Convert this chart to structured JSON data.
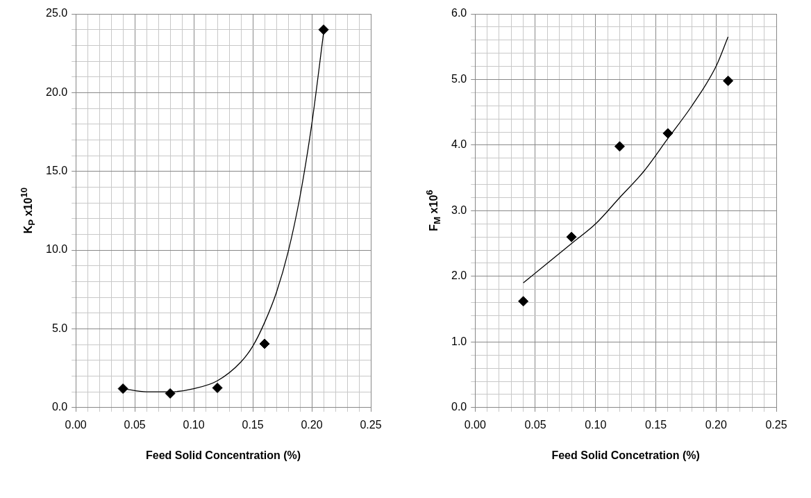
{
  "chart_data": [
    {
      "type": "scatter",
      "xlabel": "Feed Solid Concentration (%)",
      "ylabel": "K$_{P}$ x10$^{10}$",
      "grid": true,
      "xlim": [
        0,
        0.25
      ],
      "ylim": [
        0,
        25
      ],
      "xticks": [
        {
          "value": 0,
          "label": "0.00"
        },
        {
          "value": 0.01,
          "label": null
        },
        {
          "value": 0.02,
          "label": null
        },
        {
          "value": 0.03,
          "label": null
        },
        {
          "value": 0.04,
          "label": null
        },
        {
          "value": 0.05,
          "label": "0.05"
        },
        {
          "value": 0.06,
          "label": null
        },
        {
          "value": 0.07,
          "label": null
        },
        {
          "value": 0.08,
          "label": null
        },
        {
          "value": 0.09,
          "label": null
        },
        {
          "value": 0.1,
          "label": "0.10"
        },
        {
          "value": 0.11,
          "label": null
        },
        {
          "value": 0.12,
          "label": null
        },
        {
          "value": 0.13,
          "label": null
        },
        {
          "value": 0.14,
          "label": null
        },
        {
          "value": 0.15,
          "label": "0.15"
        },
        {
          "value": 0.16,
          "label": null
        },
        {
          "value": 0.17,
          "label": null
        },
        {
          "value": 0.18,
          "label": null
        },
        {
          "value": 0.19,
          "label": null
        },
        {
          "value": 0.2,
          "label": "0.20"
        },
        {
          "value": 0.21,
          "label": null
        },
        {
          "value": 0.22,
          "label": null
        },
        {
          "value": 0.23,
          "label": null
        },
        {
          "value": 0.24,
          "label": null
        },
        {
          "value": 0.25,
          "label": "0.25"
        }
      ],
      "yticks": [
        {
          "value": 0,
          "label": "0.0"
        },
        {
          "value": 1,
          "label": null
        },
        {
          "value": 2,
          "label": null
        },
        {
          "value": 3,
          "label": null
        },
        {
          "value": 4,
          "label": null
        },
        {
          "value": 5,
          "label": "5.0"
        },
        {
          "value": 6,
          "label": null
        },
        {
          "value": 7,
          "label": null
        },
        {
          "value": 8,
          "label": null
        },
        {
          "value": 9,
          "label": null
        },
        {
          "value": 10,
          "label": "10.0"
        },
        {
          "value": 11,
          "label": null
        },
        {
          "value": 12,
          "label": null
        },
        {
          "value": 13,
          "label": null
        },
        {
          "value": 14,
          "label": null
        },
        {
          "value": 15,
          "label": "15.0"
        },
        {
          "value": 16,
          "label": null
        },
        {
          "value": 17,
          "label": null
        },
        {
          "value": 18,
          "label": null
        },
        {
          "value": 19,
          "label": null
        },
        {
          "value": 20,
          "label": "20.0"
        },
        {
          "value": 21,
          "label": null
        },
        {
          "value": 22,
          "label": null
        },
        {
          "value": 23,
          "label": null
        },
        {
          "value": 24,
          "label": null
        },
        {
          "value": 25,
          "label": "25.0"
        }
      ],
      "series": [
        {
          "type": "scatter",
          "color": "#000000",
          "marker": "diamond",
          "x": [
            0.04,
            0.08,
            0.12,
            0.16,
            0.21
          ],
          "values": [
            1.2,
            0.9,
            1.25,
            4.05,
            24.0
          ]
        },
        {
          "type": "line",
          "color": "#000000",
          "marker": "none",
          "x": [
            0.04,
            0.06,
            0.08,
            0.1,
            0.12,
            0.14,
            0.15,
            0.16,
            0.17,
            0.18,
            0.19,
            0.2,
            0.21
          ],
          "values": [
            1.2,
            1.0,
            1.0,
            1.2,
            1.7,
            2.9,
            3.9,
            5.4,
            7.3,
            9.9,
            13.4,
            18.0,
            23.8
          ]
        }
      ]
    },
    {
      "type": "scatter",
      "xlabel": "Feed Solid Concetration (%)",
      "ylabel": "F$_{M}$ x10$^{6}$",
      "grid": true,
      "xlim": [
        0,
        0.25
      ],
      "ylim": [
        0,
        6
      ],
      "xticks": [
        {
          "value": 0,
          "label": "0.00"
        },
        {
          "value": 0.01,
          "label": null
        },
        {
          "value": 0.02,
          "label": null
        },
        {
          "value": 0.03,
          "label": null
        },
        {
          "value": 0.04,
          "label": null
        },
        {
          "value": 0.05,
          "label": "0.05"
        },
        {
          "value": 0.06,
          "label": null
        },
        {
          "value": 0.07,
          "label": null
        },
        {
          "value": 0.08,
          "label": null
        },
        {
          "value": 0.09,
          "label": null
        },
        {
          "value": 0.1,
          "label": "0.10"
        },
        {
          "value": 0.11,
          "label": null
        },
        {
          "value": 0.12,
          "label": null
        },
        {
          "value": 0.13,
          "label": null
        },
        {
          "value": 0.14,
          "label": null
        },
        {
          "value": 0.15,
          "label": "0.15"
        },
        {
          "value": 0.16,
          "label": null
        },
        {
          "value": 0.17,
          "label": null
        },
        {
          "value": 0.18,
          "label": null
        },
        {
          "value": 0.19,
          "label": null
        },
        {
          "value": 0.2,
          "label": "0.20"
        },
        {
          "value": 0.21,
          "label": null
        },
        {
          "value": 0.22,
          "label": null
        },
        {
          "value": 0.23,
          "label": null
        },
        {
          "value": 0.24,
          "label": null
        },
        {
          "value": 0.25,
          "label": "0.25"
        }
      ],
      "yticks": [
        {
          "value": 0,
          "label": "0.0"
        },
        {
          "value": 0.2,
          "label": null
        },
        {
          "value": 0.4,
          "label": null
        },
        {
          "value": 0.6,
          "label": null
        },
        {
          "value": 0.8,
          "label": null
        },
        {
          "value": 1,
          "label": "1.0"
        },
        {
          "value": 1.2,
          "label": null
        },
        {
          "value": 1.4,
          "label": null
        },
        {
          "value": 1.6,
          "label": null
        },
        {
          "value": 1.8,
          "label": null
        },
        {
          "value": 2,
          "label": "2.0"
        },
        {
          "value": 2.2,
          "label": null
        },
        {
          "value": 2.4,
          "label": null
        },
        {
          "value": 2.6,
          "label": null
        },
        {
          "value": 2.8,
          "label": null
        },
        {
          "value": 3,
          "label": "3.0"
        },
        {
          "value": 3.2,
          "label": null
        },
        {
          "value": 3.4,
          "label": null
        },
        {
          "value": 3.6,
          "label": null
        },
        {
          "value": 3.8,
          "label": null
        },
        {
          "value": 4,
          "label": "4.0"
        },
        {
          "value": 4.2,
          "label": null
        },
        {
          "value": 4.4,
          "label": null
        },
        {
          "value": 4.6,
          "label": null
        },
        {
          "value": 4.8,
          "label": null
        },
        {
          "value": 5,
          "label": "5.0"
        },
        {
          "value": 5.2,
          "label": null
        },
        {
          "value": 5.4,
          "label": null
        },
        {
          "value": 5.6,
          "label": null
        },
        {
          "value": 5.8,
          "label": null
        },
        {
          "value": 6,
          "label": "6.0"
        }
      ],
      "series": [
        {
          "type": "scatter",
          "color": "#000000",
          "marker": "diamond",
          "x": [
            0.04,
            0.08,
            0.12,
            0.16,
            0.21
          ],
          "values": [
            1.62,
            2.6,
            3.98,
            4.18,
            4.98
          ]
        },
        {
          "type": "line",
          "color": "#000000",
          "marker": "none",
          "x": [
            0.04,
            0.06,
            0.08,
            0.1,
            0.12,
            0.14,
            0.16,
            0.18,
            0.2,
            0.21
          ],
          "values": [
            1.9,
            2.2,
            2.5,
            2.8,
            3.2,
            3.6,
            4.1,
            4.6,
            5.2,
            5.65
          ]
        }
      ]
    }
  ]
}
